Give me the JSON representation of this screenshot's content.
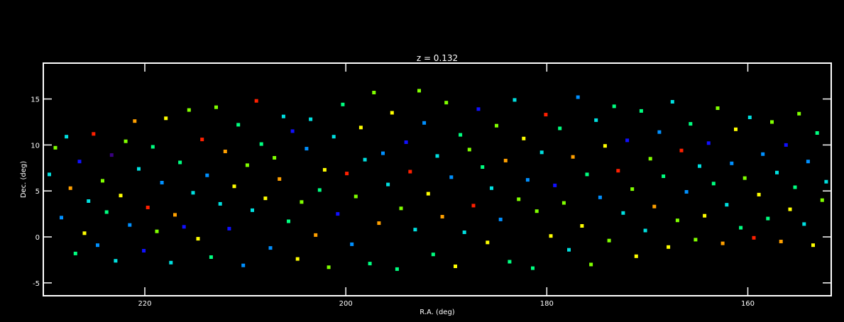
{
  "chart_data": {
    "type": "scatter",
    "title": "z = 0.132",
    "xlabel": "R.A. (deg)",
    "ylabel": "Dec. (deg)",
    "xlim": [
      230.1,
      151.7
    ],
    "ylim": [
      -6.4,
      18.9
    ],
    "x_ticks": [
      220,
      200,
      180,
      160
    ],
    "x_tick_labels": [
      "220",
      "200",
      "180",
      "160"
    ],
    "y_ticks": [
      -5,
      0,
      5,
      10,
      15
    ],
    "y_tick_labels": [
      "-5",
      "0",
      "5",
      "10",
      "15"
    ],
    "grid": false,
    "legend": "none",
    "colors": {
      "background": "#000000",
      "axes": "#ffffff",
      "point_palette": [
        "#3a0080",
        "#1010ff",
        "#0090ff",
        "#00e0e0",
        "#00ff80",
        "#80ff00",
        "#ffff00",
        "#ffa000",
        "#ff2000"
      ]
    },
    "series": [
      {
        "points": [
          [
            229.5,
            6.8,
            3
          ],
          [
            228.9,
            9.7,
            5
          ],
          [
            228.3,
            2.1,
            2
          ],
          [
            227.8,
            10.9,
            3
          ],
          [
            227.4,
            5.3,
            7
          ],
          [
            226.9,
            -1.8,
            4
          ],
          [
            226.5,
            8.2,
            1
          ],
          [
            226.0,
            0.4,
            6
          ],
          [
            225.6,
            3.9,
            3
          ],
          [
            225.1,
            11.2,
            8
          ],
          [
            224.7,
            -0.9,
            2
          ],
          [
            224.2,
            6.1,
            5
          ],
          [
            223.8,
            2.7,
            4
          ],
          [
            223.3,
            8.9,
            0
          ],
          [
            222.9,
            -2.6,
            3
          ],
          [
            222.4,
            4.5,
            6
          ],
          [
            221.9,
            10.4,
            5
          ],
          [
            221.5,
            1.3,
            2
          ],
          [
            221.0,
            12.6,
            7
          ],
          [
            220.6,
            7.4,
            3
          ],
          [
            220.1,
            -1.5,
            1
          ],
          [
            219.7,
            3.2,
            8
          ],
          [
            219.2,
            9.8,
            4
          ],
          [
            218.8,
            0.6,
            5
          ],
          [
            218.3,
            5.9,
            2
          ],
          [
            217.9,
            12.9,
            6
          ],
          [
            217.4,
            -2.8,
            3
          ],
          [
            217.0,
            2.4,
            7
          ],
          [
            216.5,
            8.1,
            4
          ],
          [
            216.1,
            1.1,
            1
          ],
          [
            215.6,
            13.8,
            5
          ],
          [
            215.2,
            4.8,
            3
          ],
          [
            214.7,
            -0.2,
            6
          ],
          [
            214.3,
            10.6,
            8
          ],
          [
            213.8,
            6.7,
            2
          ],
          [
            213.4,
            -2.2,
            4
          ],
          [
            212.9,
            14.1,
            5
          ],
          [
            212.5,
            3.6,
            3
          ],
          [
            212.0,
            9.3,
            7
          ],
          [
            211.6,
            0.9,
            1
          ],
          [
            211.1,
            5.5,
            6
          ],
          [
            210.7,
            12.2,
            4
          ],
          [
            210.2,
            -3.1,
            2
          ],
          [
            209.8,
            7.8,
            5
          ],
          [
            209.3,
            2.9,
            3
          ],
          [
            208.9,
            14.8,
            8
          ],
          [
            208.4,
            10.1,
            4
          ],
          [
            208.0,
            4.2,
            6
          ],
          [
            207.5,
            -1.2,
            2
          ],
          [
            207.1,
            8.6,
            5
          ],
          [
            206.6,
            6.3,
            7
          ],
          [
            206.2,
            13.1,
            3
          ],
          [
            205.7,
            1.7,
            4
          ],
          [
            205.3,
            11.5,
            1
          ],
          [
            204.8,
            -2.4,
            6
          ],
          [
            204.4,
            3.8,
            5
          ],
          [
            203.9,
            9.6,
            2
          ],
          [
            203.5,
            12.8,
            3
          ],
          [
            203.0,
            0.2,
            7
          ],
          [
            202.6,
            5.1,
            4
          ],
          [
            202.1,
            7.3,
            6
          ],
          [
            201.7,
            -3.3,
            5
          ],
          [
            201.2,
            10.9,
            3
          ],
          [
            200.8,
            2.5,
            1
          ],
          [
            200.3,
            14.4,
            4
          ],
          [
            199.9,
            6.9,
            8
          ],
          [
            199.4,
            -0.8,
            2
          ],
          [
            199.0,
            4.4,
            5
          ],
          [
            198.5,
            11.9,
            6
          ],
          [
            198.1,
            8.4,
            3
          ],
          [
            197.6,
            -2.9,
            4
          ],
          [
            197.2,
            15.7,
            5
          ],
          [
            196.7,
            1.5,
            7
          ],
          [
            196.3,
            9.1,
            2
          ],
          [
            195.8,
            5.7,
            3
          ],
          [
            195.4,
            13.5,
            6
          ],
          [
            194.9,
            -3.5,
            4
          ],
          [
            194.5,
            3.1,
            5
          ],
          [
            194.0,
            10.3,
            1
          ],
          [
            193.6,
            7.1,
            8
          ],
          [
            193.1,
            0.8,
            3
          ],
          [
            192.7,
            15.9,
            5
          ],
          [
            192.2,
            12.4,
            2
          ],
          [
            191.8,
            4.7,
            6
          ],
          [
            191.3,
            -1.9,
            4
          ],
          [
            190.9,
            8.8,
            3
          ],
          [
            190.4,
            2.2,
            7
          ],
          [
            190.0,
            14.6,
            5
          ],
          [
            189.5,
            6.5,
            2
          ],
          [
            189.1,
            -3.2,
            6
          ],
          [
            188.6,
            11.1,
            4
          ],
          [
            188.2,
            0.5,
            3
          ],
          [
            187.7,
            9.5,
            5
          ],
          [
            187.3,
            3.4,
            8
          ],
          [
            186.8,
            13.9,
            1
          ],
          [
            186.4,
            7.6,
            4
          ],
          [
            185.9,
            -0.6,
            6
          ],
          [
            185.5,
            5.3,
            3
          ],
          [
            185.0,
            12.1,
            5
          ],
          [
            184.6,
            1.9,
            2
          ],
          [
            184.1,
            8.3,
            7
          ],
          [
            183.7,
            -2.7,
            4
          ],
          [
            183.2,
            14.9,
            3
          ],
          [
            182.8,
            4.1,
            5
          ],
          [
            182.3,
            10.7,
            6
          ],
          [
            181.9,
            6.2,
            2
          ],
          [
            181.4,
            -3.4,
            4
          ],
          [
            181.0,
            2.8,
            5
          ],
          [
            180.5,
            9.2,
            3
          ],
          [
            180.1,
            13.3,
            8
          ],
          [
            179.6,
            0.1,
            6
          ],
          [
            179.2,
            5.6,
            1
          ],
          [
            178.7,
            11.8,
            4
          ],
          [
            178.3,
            3.7,
            5
          ],
          [
            177.8,
            -1.4,
            3
          ],
          [
            177.4,
            8.7,
            7
          ],
          [
            176.9,
            15.2,
            2
          ],
          [
            176.5,
            1.2,
            6
          ],
          [
            176.0,
            6.8,
            4
          ],
          [
            175.6,
            -3.0,
            5
          ],
          [
            175.1,
            12.7,
            3
          ],
          [
            174.7,
            4.3,
            2
          ],
          [
            174.2,
            9.9,
            6
          ],
          [
            173.8,
            -0.4,
            5
          ],
          [
            173.3,
            14.2,
            4
          ],
          [
            172.9,
            7.2,
            8
          ],
          [
            172.4,
            2.6,
            3
          ],
          [
            172.0,
            10.5,
            1
          ],
          [
            171.5,
            5.2,
            5
          ],
          [
            171.1,
            -2.1,
            6
          ],
          [
            170.6,
            13.7,
            4
          ],
          [
            170.2,
            0.7,
            3
          ],
          [
            169.7,
            8.5,
            5
          ],
          [
            169.3,
            3.3,
            7
          ],
          [
            168.8,
            11.4,
            2
          ],
          [
            168.4,
            6.6,
            4
          ],
          [
            167.9,
            -1.1,
            6
          ],
          [
            167.5,
            14.7,
            3
          ],
          [
            167.0,
            1.8,
            5
          ],
          [
            166.6,
            9.4,
            8
          ],
          [
            166.1,
            4.9,
            2
          ],
          [
            165.7,
            12.3,
            4
          ],
          [
            165.2,
            -0.3,
            5
          ],
          [
            164.8,
            7.7,
            3
          ],
          [
            164.3,
            2.3,
            6
          ],
          [
            163.9,
            10.2,
            1
          ],
          [
            163.4,
            5.8,
            4
          ],
          [
            163.0,
            14.0,
            5
          ],
          [
            162.5,
            -0.7,
            7
          ],
          [
            162.1,
            3.5,
            3
          ],
          [
            161.6,
            8.0,
            2
          ],
          [
            161.2,
            11.7,
            6
          ],
          [
            160.7,
            1.0,
            4
          ],
          [
            160.3,
            6.4,
            5
          ],
          [
            159.8,
            13.0,
            3
          ],
          [
            159.4,
            -0.1,
            8
          ],
          [
            158.9,
            4.6,
            6
          ],
          [
            158.5,
            9.0,
            2
          ],
          [
            158.0,
            2.0,
            4
          ],
          [
            157.6,
            12.5,
            5
          ],
          [
            157.1,
            7.0,
            3
          ],
          [
            156.7,
            -0.5,
            7
          ],
          [
            156.2,
            10.0,
            1
          ],
          [
            155.8,
            3.0,
            6
          ],
          [
            155.3,
            5.4,
            4
          ],
          [
            154.9,
            13.4,
            5
          ],
          [
            154.4,
            1.4,
            3
          ],
          [
            154.0,
            8.2,
            2
          ],
          [
            153.5,
            -0.9,
            6
          ],
          [
            153.1,
            11.3,
            4
          ],
          [
            152.6,
            4.0,
            5
          ],
          [
            152.2,
            6.0,
            3
          ]
        ]
      }
    ]
  }
}
